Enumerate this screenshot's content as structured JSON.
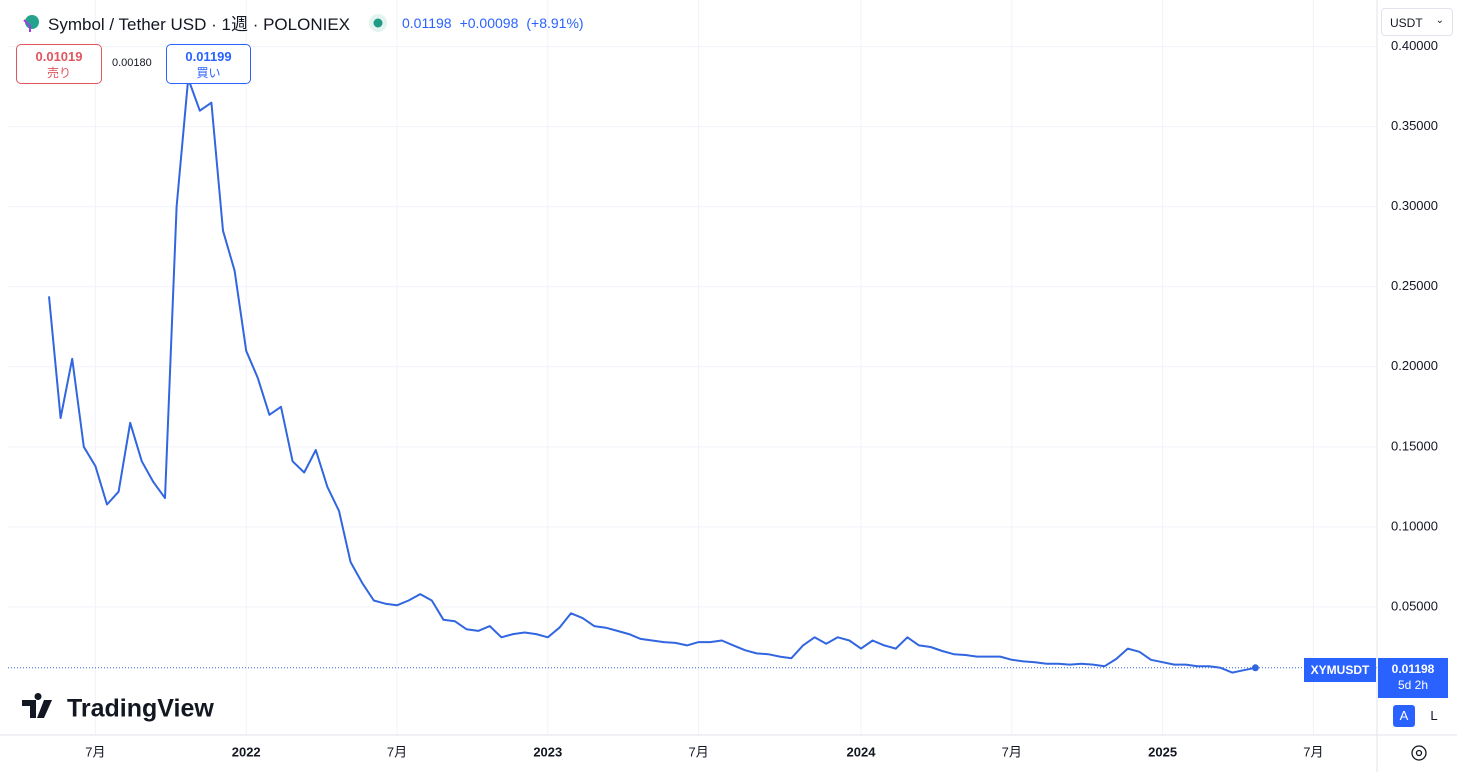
{
  "header": {
    "symbol": "Symbol / Tether USD · 1週 · POLONIEX",
    "price": "0.01198",
    "change": "+0.00098",
    "change_pct": "(+8.91%)",
    "sell_price": "0.01019",
    "sell_label": "売り",
    "spread": "0.00180",
    "buy_price": "0.01199",
    "buy_label": "買い",
    "currency": "USDT",
    "logo": "TradingView",
    "auto_button": "A",
    "log_button": "L",
    "countdown": "5d 2h"
  },
  "chart_data": {
    "type": "line",
    "categories": [
      null,
      null,
      null,
      null,
      "7月",
      null,
      null,
      null,
      null,
      null,
      null,
      null,
      null,
      null,
      null,
      null,
      null,
      "2022",
      null,
      null,
      null,
      null,
      null,
      null,
      null,
      null,
      null,
      null,
      null,
      null,
      "7月",
      null,
      null,
      null,
      null,
      null,
      null,
      null,
      null,
      null,
      null,
      null,
      null,
      "2023",
      null,
      null,
      null,
      null,
      null,
      null,
      null,
      null,
      null,
      null,
      null,
      null,
      "7月",
      null,
      null,
      null,
      null,
      null,
      null,
      null,
      null,
      null,
      null,
      null,
      null,
      null,
      "2024",
      null,
      null,
      null,
      null,
      null,
      null,
      null,
      null,
      null,
      null,
      null,
      null,
      "7月",
      null,
      null,
      null,
      null,
      null,
      null,
      null,
      null,
      null,
      null,
      null,
      null,
      "2025",
      null,
      null,
      null,
      null,
      null,
      null,
      null,
      null,
      null,
      null,
      null,
      null,
      "7月",
      null,
      null,
      null,
      null,
      null
    ],
    "series": [
      {
        "name": "XYMUSDT",
        "color": "#3166e0",
        "values": [
          0.244,
          0.168,
          0.205,
          0.15,
          0.138,
          0.114,
          0.122,
          0.165,
          0.141,
          0.128,
          0.118,
          0.3,
          0.38,
          0.36,
          0.365,
          0.285,
          0.26,
          0.21,
          0.193,
          0.17,
          0.175,
          0.141,
          0.134,
          0.148,
          0.125,
          0.11,
          0.078,
          0.065,
          0.054,
          0.052,
          0.051,
          0.054,
          0.058,
          0.054,
          0.042,
          0.041,
          0.036,
          0.035,
          0.038,
          0.031,
          0.033,
          0.034,
          0.033,
          0.031,
          0.037,
          0.046,
          0.043,
          0.038,
          0.037,
          0.035,
          0.033,
          0.03,
          0.029,
          0.028,
          0.0275,
          0.026,
          0.028,
          0.028,
          0.029,
          0.026,
          0.023,
          0.021,
          0.0205,
          0.019,
          0.018,
          0.026,
          0.031,
          0.027,
          0.031,
          0.029,
          0.024,
          0.029,
          0.026,
          0.024,
          0.031,
          0.026,
          0.025,
          0.0225,
          0.0205,
          0.02,
          0.019,
          0.019,
          0.019,
          0.017,
          0.016,
          0.0155,
          0.0145,
          0.0145,
          0.014,
          0.0145,
          0.014,
          0.013,
          0.0175,
          0.024,
          0.022,
          0.017,
          0.0155,
          0.014,
          0.014,
          0.013,
          0.013,
          0.012,
          0.009,
          0.0105,
          0.01198,
          null,
          null,
          null,
          null,
          null,
          null,
          null,
          null,
          null,
          null
        ]
      }
    ],
    "last_price": 0.01198,
    "ylim": [
      -0.03,
      0.426
    ],
    "yticks": [
      {
        "value": 0.05,
        "label": "0.05000"
      },
      {
        "value": 0.1,
        "label": "0.10000"
      },
      {
        "value": 0.15,
        "label": "0.15000"
      },
      {
        "value": 0.2,
        "label": "0.20000"
      },
      {
        "value": 0.25,
        "label": "0.25000"
      },
      {
        "value": 0.3,
        "label": "0.30000"
      },
      {
        "value": 0.35,
        "label": "0.35000"
      },
      {
        "value": 0.4,
        "label": "0.40000"
      }
    ],
    "grid": true
  }
}
